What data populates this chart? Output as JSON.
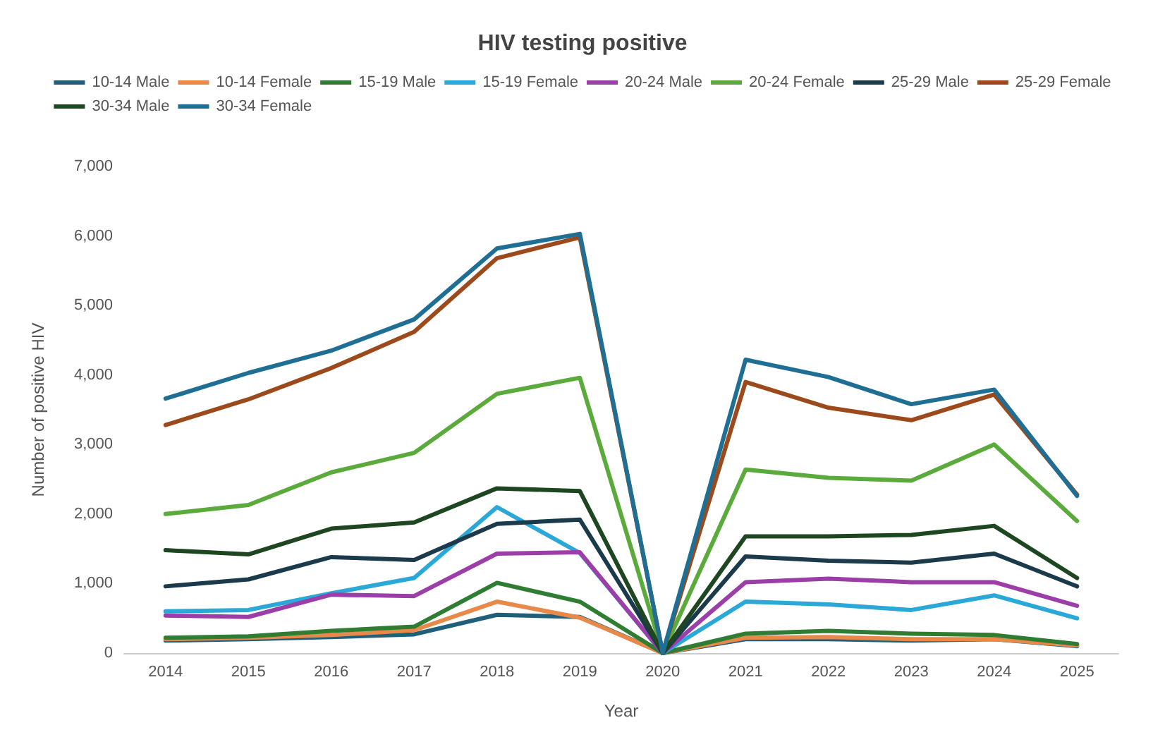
{
  "chart_data": {
    "type": "line",
    "title": "HIV testing positive",
    "xlabel": "Year",
    "ylabel": "Number of positive HIV",
    "categories": [
      "2014",
      "2015",
      "2016",
      "2017",
      "2018",
      "2019",
      "2020",
      "2021",
      "2022",
      "2023",
      "2024",
      "2025"
    ],
    "ylim": [
      0,
      7000
    ],
    "yticks": [
      {
        "value": 0,
        "label": "0"
      },
      {
        "value": 1000,
        "label": "1,000"
      },
      {
        "value": 2000,
        "label": "2,000"
      },
      {
        "value": 3000,
        "label": "3,000"
      },
      {
        "value": 4000,
        "label": "4,000"
      },
      {
        "value": 5000,
        "label": "5,000"
      },
      {
        "value": 6000,
        "label": "6,000"
      },
      {
        "value": 7000,
        "label": "7,000"
      }
    ],
    "grid": false,
    "legend": "top",
    "marker": "none",
    "series": [
      {
        "name": "10-14 Male",
        "color": "#1f5f7a",
        "values": [
          180,
          200,
          230,
          270,
          550,
          520,
          0,
          200,
          200,
          180,
          200,
          100
        ]
      },
      {
        "name": "10-14 Female",
        "color": "#e8894a",
        "values": [
          200,
          220,
          260,
          330,
          740,
          510,
          0,
          220,
          230,
          200,
          200,
          110
        ]
      },
      {
        "name": "15-19 Male",
        "color": "#2e7d32",
        "values": [
          220,
          240,
          320,
          380,
          1010,
          740,
          0,
          280,
          320,
          280,
          260,
          130
        ]
      },
      {
        "name": "15-19 Female",
        "color": "#2aa8d8",
        "values": [
          600,
          620,
          860,
          1080,
          2100,
          1440,
          0,
          740,
          700,
          620,
          830,
          500
        ]
      },
      {
        "name": "20-24 Male",
        "color": "#9c3ea8",
        "values": [
          540,
          520,
          840,
          820,
          1430,
          1450,
          0,
          1020,
          1070,
          1020,
          1020,
          680
        ]
      },
      {
        "name": "20-24 Female",
        "color": "#5aaa3c",
        "values": [
          2000,
          2130,
          2600,
          2880,
          3730,
          3960,
          0,
          2640,
          2520,
          2480,
          3000,
          1900
        ]
      },
      {
        "name": "25-29 Male",
        "color": "#1b3a4b",
        "values": [
          960,
          1060,
          1380,
          1340,
          1860,
          1920,
          0,
          1390,
          1330,
          1300,
          1430,
          960
        ]
      },
      {
        "name": "25-29 Female",
        "color": "#9c4a1c",
        "values": [
          3280,
          3650,
          4100,
          4620,
          5680,
          5980,
          0,
          3900,
          3530,
          3350,
          3720,
          2280
        ]
      },
      {
        "name": "30-34 Male",
        "color": "#1e4620",
        "values": [
          1480,
          1420,
          1790,
          1880,
          2370,
          2330,
          0,
          1680,
          1680,
          1700,
          1830,
          1080
        ]
      },
      {
        "name": "30-34 Female",
        "color": "#1f6f94",
        "values": [
          3660,
          4030,
          4350,
          4800,
          5820,
          6030,
          0,
          4220,
          3970,
          3580,
          3790,
          2260
        ]
      }
    ]
  }
}
